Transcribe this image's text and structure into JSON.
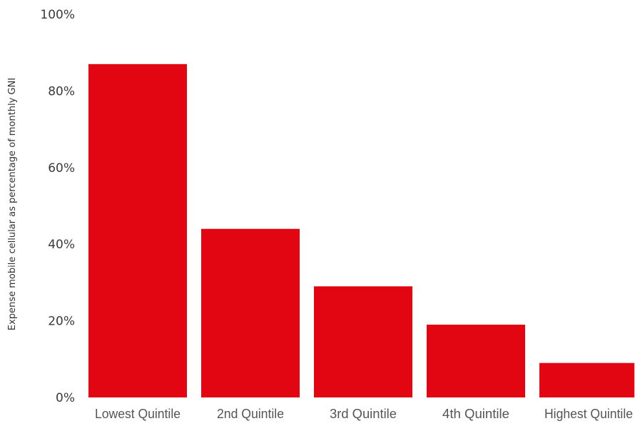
{
  "chart_data": {
    "type": "bar",
    "title": "",
    "xlabel": "",
    "ylabel": "Expense mobile cellular as percentage of monthly GNI",
    "categories": [
      "Lowest Quintile",
      "2nd Quintile",
      "3rd Quintile",
      "4th Quintile",
      "Highest Quintile"
    ],
    "values": [
      87,
      44,
      29,
      19,
      9
    ],
    "ylim": [
      0,
      100
    ],
    "y_ticks": [
      0,
      20,
      40,
      60,
      80,
      100
    ],
    "y_tick_labels": [
      "0%",
      "20%",
      "40%",
      "60%",
      "80%",
      "100%"
    ],
    "grid": false,
    "legend": "none",
    "bar_color": "#e20613"
  }
}
